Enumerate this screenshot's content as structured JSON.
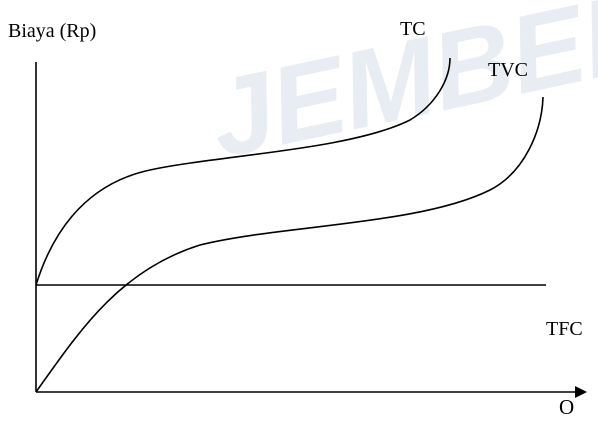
{
  "watermark": {
    "text": "JEMBER",
    "color": "#e7edf2"
  },
  "chart_data": {
    "type": "line",
    "ylabel": "Biaya (Rp)",
    "xlabel": "O",
    "grid": false,
    "series": [
      {
        "name": "TC"
      },
      {
        "name": "TVC"
      },
      {
        "name": "TFC"
      }
    ],
    "line_color": "#000000"
  }
}
